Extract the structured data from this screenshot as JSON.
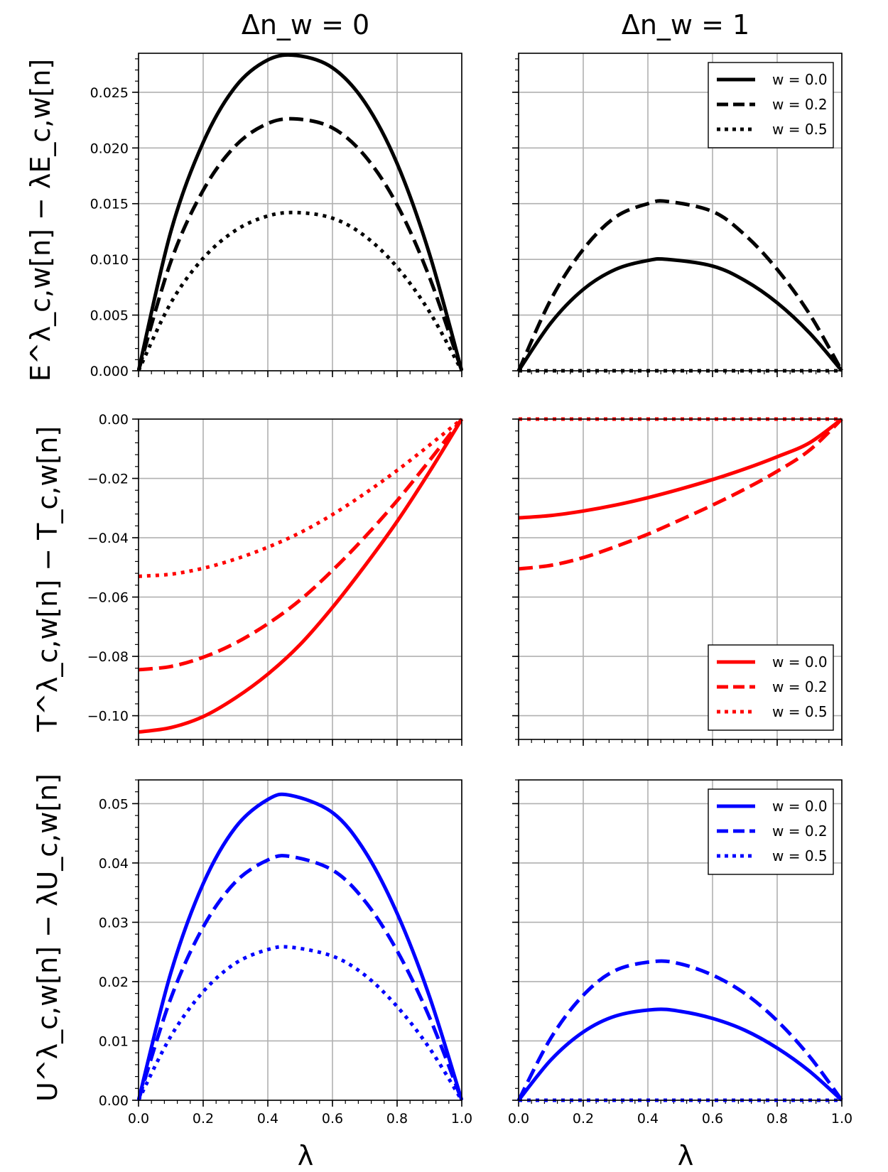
{
  "colors": {
    "black": "#000000",
    "red": "#ff0000",
    "blue": "#0000ff",
    "grid": "#b0b0b0",
    "background": "#ffffff"
  },
  "column_titles": [
    "Δn_w = 0",
    "Δn_w = 1"
  ],
  "row_ylabels": [
    "E^λ_c,w[n] − λE_c,w[n]",
    "T^λ_c,w[n] − T_c,w[n]",
    "U^λ_c,w[n] − λU_c,w[n]"
  ],
  "xlabel": "λ",
  "chart_data": [
    {
      "type": "line",
      "id": "E-dn0",
      "row": 0,
      "col": 0,
      "color": "black",
      "title": "Δn_w = 0",
      "ylabel": "E^λ_c,w[n] − λE_c,w[n]",
      "xlabel": "",
      "xlim": [
        0,
        1
      ],
      "ylim": [
        0,
        0.0285
      ],
      "xticks": [
        0.0,
        0.2,
        0.4,
        0.6,
        0.8,
        1.0
      ],
      "yticks": [
        0.0,
        0.005,
        0.01,
        0.015,
        0.02,
        0.025
      ],
      "ytick_labels": [
        "0.000",
        "0.005",
        "0.010",
        "0.015",
        "0.020",
        "0.025"
      ],
      "xtick_labels": [],
      "grid": true,
      "legend": null,
      "series": [
        {
          "name": "w = 0.0",
          "style": "solid",
          "x": [
            0,
            0.1,
            0.2,
            0.3,
            0.4,
            0.49,
            0.6,
            0.7,
            0.8,
            0.9,
            1.0
          ],
          "y": [
            0,
            0.0125,
            0.0205,
            0.0255,
            0.0279,
            0.0283,
            0.0272,
            0.0241,
            0.0186,
            0.0105,
            0
          ]
        },
        {
          "name": "w = 0.2",
          "style": "dashed",
          "x": [
            0,
            0.1,
            0.2,
            0.3,
            0.4,
            0.49,
            0.6,
            0.7,
            0.8,
            0.9,
            1.0
          ],
          "y": [
            0,
            0.0098,
            0.0162,
            0.0202,
            0.0222,
            0.0226,
            0.0218,
            0.0193,
            0.0149,
            0.0084,
            0
          ]
        },
        {
          "name": "w = 0.5",
          "style": "dotted",
          "x": [
            0,
            0.1,
            0.2,
            0.3,
            0.4,
            0.49,
            0.6,
            0.7,
            0.8,
            0.9,
            1.0
          ],
          "y": [
            0,
            0.0061,
            0.0101,
            0.0126,
            0.0139,
            0.0142,
            0.0137,
            0.0121,
            0.0093,
            0.0053,
            0
          ]
        }
      ]
    },
    {
      "type": "line",
      "id": "E-dn1",
      "row": 0,
      "col": 1,
      "color": "black",
      "title": "Δn_w = 1",
      "ylabel": "",
      "xlabel": "",
      "xlim": [
        0,
        1
      ],
      "ylim": [
        0,
        0.0285
      ],
      "xticks": [
        0.0,
        0.2,
        0.4,
        0.6,
        0.8,
        1.0
      ],
      "yticks": [
        0.0,
        0.005,
        0.01,
        0.015,
        0.02,
        0.025
      ],
      "ytick_labels": [],
      "xtick_labels": [],
      "grid": true,
      "legend": "top-right",
      "series": [
        {
          "name": "w = 0.0",
          "style": "solid",
          "x": [
            0,
            0.1,
            0.2,
            0.3,
            0.4,
            0.46,
            0.6,
            0.7,
            0.8,
            0.9,
            1.0
          ],
          "y": [
            0,
            0.0043,
            0.0073,
            0.0091,
            0.0099,
            0.01,
            0.0094,
            0.0081,
            0.0061,
            0.0034,
            0
          ]
        },
        {
          "name": "w = 0.2",
          "style": "dashed",
          "x": [
            0,
            0.1,
            0.2,
            0.3,
            0.4,
            0.46,
            0.6,
            0.7,
            0.8,
            0.9,
            1.0
          ],
          "y": [
            0,
            0.0064,
            0.0109,
            0.0138,
            0.015,
            0.0152,
            0.0143,
            0.0122,
            0.0091,
            0.0051,
            0
          ]
        },
        {
          "name": "w = 0.5",
          "style": "dotted",
          "x": [
            0,
            1.0
          ],
          "y": [
            0,
            0
          ]
        }
      ]
    },
    {
      "type": "line",
      "id": "T-dn0",
      "row": 1,
      "col": 0,
      "color": "red",
      "title": "",
      "ylabel": "T^λ_c,w[n] − T_c,w[n]",
      "xlabel": "",
      "xlim": [
        0,
        1
      ],
      "ylim": [
        -0.108,
        0
      ],
      "xticks": [
        0.0,
        0.2,
        0.4,
        0.6,
        0.8,
        1.0
      ],
      "yticks": [
        -0.1,
        -0.08,
        -0.06,
        -0.04,
        -0.02,
        0.0
      ],
      "ytick_labels": [
        "−0.10",
        "−0.08",
        "−0.06",
        "−0.04",
        "−0.02",
        "0.00"
      ],
      "xtick_labels": [],
      "grid": true,
      "legend": null,
      "series": [
        {
          "name": "w = 0.0",
          "style": "solid",
          "x": [
            0,
            0.1,
            0.2,
            0.3,
            0.4,
            0.5,
            0.6,
            0.7,
            0.8,
            0.9,
            1.0
          ],
          "y": [
            -0.1055,
            -0.104,
            -0.1003,
            -0.094,
            -0.086,
            -0.076,
            -0.0635,
            -0.0495,
            -0.0345,
            -0.0178,
            0
          ]
        },
        {
          "name": "w = 0.2",
          "style": "dashed",
          "x": [
            0,
            0.1,
            0.2,
            0.3,
            0.4,
            0.5,
            0.6,
            0.7,
            0.8,
            0.9,
            1.0
          ],
          "y": [
            -0.0845,
            -0.0834,
            -0.0803,
            -0.0755,
            -0.069,
            -0.061,
            -0.051,
            -0.0398,
            -0.0275,
            -0.014,
            0
          ]
        },
        {
          "name": "w = 0.5",
          "style": "dotted",
          "x": [
            0,
            0.1,
            0.2,
            0.3,
            0.4,
            0.5,
            0.6,
            0.7,
            0.8,
            0.9,
            1.0
          ],
          "y": [
            -0.053,
            -0.0523,
            -0.0503,
            -0.0472,
            -0.0432,
            -0.0383,
            -0.0322,
            -0.0251,
            -0.0173,
            -0.0088,
            0
          ]
        }
      ]
    },
    {
      "type": "line",
      "id": "T-dn1",
      "row": 1,
      "col": 1,
      "color": "red",
      "title": "",
      "ylabel": "",
      "xlabel": "",
      "xlim": [
        0,
        1
      ],
      "ylim": [
        -0.108,
        0
      ],
      "xticks": [
        0.0,
        0.2,
        0.4,
        0.6,
        0.8,
        1.0
      ],
      "yticks": [
        -0.1,
        -0.08,
        -0.06,
        -0.04,
        -0.02,
        0.0
      ],
      "ytick_labels": [],
      "xtick_labels": [],
      "grid": true,
      "legend": "bottom-right",
      "series": [
        {
          "name": "w = 0.0",
          "style": "solid",
          "x": [
            0,
            0.1,
            0.2,
            0.3,
            0.4,
            0.5,
            0.6,
            0.7,
            0.8,
            0.9,
            1.0
          ],
          "y": [
            -0.0333,
            -0.0325,
            -0.031,
            -0.029,
            -0.0265,
            -0.0236,
            -0.0204,
            -0.0168,
            -0.0127,
            -0.008,
            0
          ]
        },
        {
          "name": "w = 0.2",
          "style": "dashed",
          "x": [
            0,
            0.1,
            0.2,
            0.3,
            0.4,
            0.5,
            0.6,
            0.7,
            0.8,
            0.9,
            1.0
          ],
          "y": [
            -0.0505,
            -0.0493,
            -0.0467,
            -0.043,
            -0.0388,
            -0.034,
            -0.029,
            -0.0236,
            -0.0176,
            -0.0105,
            0
          ]
        },
        {
          "name": "w = 0.5",
          "style": "dotted",
          "x": [
            0,
            1.0
          ],
          "y": [
            0,
            0
          ]
        }
      ]
    },
    {
      "type": "line",
      "id": "U-dn0",
      "row": 2,
      "col": 0,
      "color": "blue",
      "title": "",
      "ylabel": "U^λ_c,w[n] − λU_c,w[n]",
      "xlabel": "λ",
      "xlim": [
        0,
        1
      ],
      "ylim": [
        0,
        0.054
      ],
      "xticks": [
        0.0,
        0.2,
        0.4,
        0.6,
        0.8,
        1.0
      ],
      "yticks": [
        0.0,
        0.01,
        0.02,
        0.03,
        0.04,
        0.05
      ],
      "ytick_labels": [
        "0.00",
        "0.01",
        "0.02",
        "0.03",
        "0.04",
        "0.05"
      ],
      "xtick_labels": [
        "0.0",
        "0.2",
        "0.4",
        "0.6",
        "0.8",
        "1.0"
      ],
      "grid": true,
      "legend": null,
      "series": [
        {
          "name": "w = 0.0",
          "style": "solid",
          "x": [
            0,
            0.1,
            0.2,
            0.3,
            0.4,
            0.47,
            0.6,
            0.7,
            0.8,
            0.9,
            1.0
          ],
          "y": [
            0,
            0.0215,
            0.0365,
            0.046,
            0.0507,
            0.0514,
            0.0485,
            0.042,
            0.0315,
            0.0175,
            0
          ]
        },
        {
          "name": "w = 0.2",
          "style": "dashed",
          "x": [
            0,
            0.1,
            0.2,
            0.3,
            0.4,
            0.47,
            0.6,
            0.7,
            0.8,
            0.9,
            1.0
          ],
          "y": [
            0,
            0.0172,
            0.0292,
            0.0368,
            0.0405,
            0.0411,
            0.0388,
            0.0336,
            0.0252,
            0.014,
            0
          ]
        },
        {
          "name": "w = 0.5",
          "style": "dotted",
          "x": [
            0,
            0.1,
            0.2,
            0.3,
            0.4,
            0.47,
            0.6,
            0.7,
            0.8,
            0.9,
            1.0
          ],
          "y": [
            0,
            0.0108,
            0.0183,
            0.0231,
            0.0254,
            0.0258,
            0.0243,
            0.0211,
            0.0158,
            0.0088,
            0
          ]
        }
      ]
    },
    {
      "type": "line",
      "id": "U-dn1",
      "row": 2,
      "col": 1,
      "color": "blue",
      "title": "",
      "ylabel": "",
      "xlabel": "λ",
      "xlim": [
        0,
        1
      ],
      "ylim": [
        0,
        0.054
      ],
      "xticks": [
        0.0,
        0.2,
        0.4,
        0.6,
        0.8,
        1.0
      ],
      "yticks": [
        0.0,
        0.01,
        0.02,
        0.03,
        0.04,
        0.05
      ],
      "ytick_labels": [],
      "xtick_labels": [
        "0.0",
        "0.2",
        "0.4",
        "0.6",
        "0.8",
        "1.0"
      ],
      "grid": true,
      "legend": "top-right",
      "series": [
        {
          "name": "w = 0.0",
          "style": "solid",
          "x": [
            0,
            0.1,
            0.2,
            0.3,
            0.42,
            0.5,
            0.6,
            0.7,
            0.8,
            0.9,
            1.0
          ],
          "y": [
            0,
            0.0068,
            0.0115,
            0.0142,
            0.0153,
            0.015,
            0.0138,
            0.0118,
            0.0088,
            0.0049,
            0
          ]
        },
        {
          "name": "w = 0.2",
          "style": "dashed",
          "x": [
            0,
            0.1,
            0.2,
            0.3,
            0.42,
            0.5,
            0.6,
            0.7,
            0.8,
            0.9,
            1.0
          ],
          "y": [
            0,
            0.0105,
            0.0177,
            0.0219,
            0.0234,
            0.023,
            0.0211,
            0.018,
            0.0134,
            0.0074,
            0
          ]
        },
        {
          "name": "w = 0.5",
          "style": "dotted",
          "x": [
            0,
            1.0
          ],
          "y": [
            0,
            0
          ]
        }
      ]
    }
  ]
}
